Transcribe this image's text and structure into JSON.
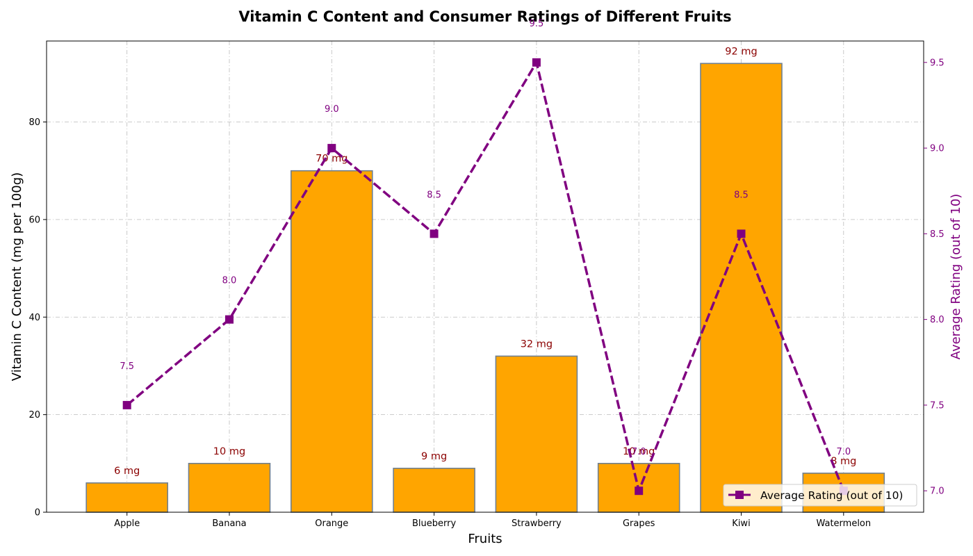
{
  "chart_data": {
    "type": "bar",
    "title": "Vitamin C Content and Consumer Ratings of Different Fruits",
    "xlabel": "Fruits",
    "ylabel": "Vitamin C Content (mg per 100g)",
    "y2label": "Average Rating (out of 10)",
    "categories": [
      "Apple",
      "Banana",
      "Orange",
      "Blueberry",
      "Strawberry",
      "Grapes",
      "Kiwi",
      "Watermelon"
    ],
    "ylim": [
      0,
      96.6
    ],
    "y2lim": [
      6.875,
      9.625
    ],
    "yticks": [
      0,
      20,
      40,
      60,
      80
    ],
    "y2ticks": [
      7.0,
      7.5,
      8.0,
      8.5,
      9.0,
      9.5
    ],
    "y2tick_labels": [
      "7.0",
      "7.5",
      "8.0",
      "8.5",
      "9.0",
      "9.5"
    ],
    "grid": true,
    "legend_position": "lower-right",
    "series": [
      {
        "kind": "bar",
        "values": [
          6,
          10,
          70,
          9,
          32,
          10,
          92,
          8
        ],
        "data_labels": [
          "6 mg",
          "10 mg",
          "70 mg",
          "9 mg",
          "32 mg",
          "10 mg",
          "92 mg",
          "8 mg"
        ],
        "color": "#FFA500",
        "edge_color": "#708090",
        "label_color": "#8B0000"
      },
      {
        "kind": "line",
        "name": "Average Rating (out of 10)",
        "axis": "right",
        "values": [
          7.5,
          8.0,
          9.0,
          8.5,
          9.5,
          7.0,
          8.5,
          7.0
        ],
        "data_labels": [
          "7.5",
          "8.0",
          "9.0",
          "8.5",
          "9.5",
          "7.0",
          "8.5",
          "7.0"
        ],
        "color": "#800080",
        "line_style": "dashed",
        "marker": "square"
      }
    ]
  }
}
